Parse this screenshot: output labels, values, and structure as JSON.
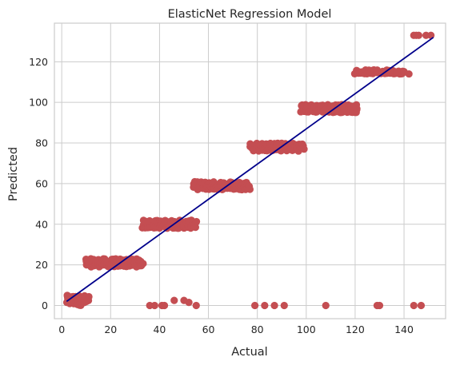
{
  "chart_data": {
    "type": "scatter",
    "title": "ElasticNet Regression Model",
    "xlabel": "Actual",
    "ylabel": "Predicted",
    "xlim": [
      -3,
      157
    ],
    "ylim": [
      -6.5,
      139
    ],
    "xticks": [
      0,
      20,
      40,
      60,
      80,
      100,
      120,
      140
    ],
    "yticks": [
      0,
      20,
      40,
      60,
      80,
      100,
      120
    ],
    "grid": true,
    "colors": {
      "points": "#c44e52",
      "line": "#00008b",
      "grid": "#cccccc"
    },
    "clusters": [
      {
        "x_start": 2,
        "x_end": 11,
        "y_min": 0,
        "y_max": 5,
        "n": 50
      },
      {
        "x_start": 10,
        "x_end": 33,
        "y_min": 19,
        "y_max": 23,
        "n": 120
      },
      {
        "x_start": 33,
        "x_end": 55,
        "y_min": 38,
        "y_max": 42,
        "n": 120
      },
      {
        "x_start": 54,
        "x_end": 77,
        "y_min": 57,
        "y_max": 61,
        "n": 120
      },
      {
        "x_start": 77,
        "x_end": 99,
        "y_min": 76,
        "y_max": 80,
        "n": 110
      },
      {
        "x_start": 98,
        "x_end": 121,
        "y_min": 95,
        "y_max": 99,
        "n": 110
      },
      {
        "x_start": 120,
        "x_end": 140,
        "y_min": 114,
        "y_max": 116,
        "n": 60
      }
    ],
    "series": [
      {
        "points": [
          [
            36,
            0
          ],
          [
            38,
            0
          ],
          [
            41,
            0
          ],
          [
            42,
            0
          ],
          [
            46,
            2.5
          ],
          [
            50,
            2.5
          ],
          [
            52,
            1.5
          ],
          [
            55,
            0
          ],
          [
            79,
            0
          ],
          [
            83,
            0
          ],
          [
            87,
            0
          ],
          [
            91,
            0
          ],
          [
            108,
            0
          ],
          [
            129,
            0
          ],
          [
            130,
            0
          ],
          [
            144,
            0
          ],
          [
            147,
            0
          ],
          [
            134,
            115
          ],
          [
            137,
            115
          ],
          [
            140,
            115
          ],
          [
            142,
            114
          ],
          [
            144,
            133
          ],
          [
            145,
            133
          ],
          [
            146,
            133
          ],
          [
            149,
            133
          ],
          [
            151,
            133
          ]
        ]
      }
    ],
    "fit_line": {
      "x": [
        2,
        152
      ],
      "y": [
        2,
        132
      ]
    }
  }
}
